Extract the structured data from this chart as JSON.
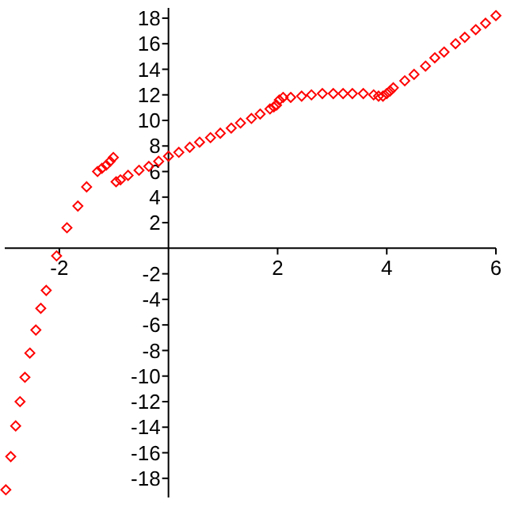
{
  "chart_data": {
    "type": "scatter",
    "marker": "diamond",
    "grid": false,
    "xlim": [
      -3,
      6
    ],
    "ylim": [
      -19.5,
      18.8
    ],
    "xticks": [
      -2,
      2,
      4,
      6
    ],
    "yticks": [
      -18,
      -16,
      -14,
      -12,
      -10,
      -8,
      -6,
      -4,
      -2,
      2,
      4,
      6,
      8,
      10,
      12,
      14,
      16,
      18
    ],
    "series": [
      {
        "color": "#ff0000",
        "x": [
          -2.98,
          -2.89,
          -2.8,
          -2.72,
          -2.63,
          -2.54,
          -2.43,
          -2.34,
          -2.24,
          -2.05,
          -1.86,
          -1.66,
          -1.5,
          -1.3,
          -1.22,
          -1.14,
          -1.07,
          -1.01,
          -0.96,
          -0.88,
          -0.74,
          -0.54,
          -0.36,
          -0.18,
          0,
          0.19,
          0.39,
          0.57,
          0.77,
          0.95,
          1.15,
          1.32,
          1.52,
          1.68,
          1.86,
          1.93,
          1.98,
          2.03,
          2.1,
          2.24,
          2.44,
          2.62,
          2.82,
          3.02,
          3.2,
          3.37,
          3.57,
          3.76,
          3.85,
          3.93,
          4.0,
          4.06,
          4.12,
          4.33,
          4.5,
          4.71,
          4.88,
          5.05,
          5.26,
          5.43,
          5.63,
          5.81,
          6.0
        ],
        "values": [
          -18.9,
          -16.3,
          -13.9,
          -12.0,
          -10.1,
          -8.2,
          -6.4,
          -4.7,
          -3.3,
          -0.6,
          1.6,
          3.3,
          4.8,
          6.0,
          6.25,
          6.5,
          6.8,
          7.1,
          5.2,
          5.35,
          5.7,
          6.1,
          6.4,
          6.8,
          7.2,
          7.5,
          7.9,
          8.3,
          8.65,
          9.0,
          9.4,
          9.8,
          10.15,
          10.5,
          10.9,
          11.05,
          11.2,
          11.6,
          11.8,
          11.8,
          11.9,
          12.0,
          12.1,
          12.1,
          12.1,
          12.1,
          12.1,
          12.0,
          11.9,
          11.9,
          12.1,
          12.3,
          12.55,
          13.1,
          13.6,
          14.25,
          14.9,
          15.35,
          16.0,
          16.5,
          17.1,
          17.6,
          18.2
        ]
      }
    ]
  }
}
